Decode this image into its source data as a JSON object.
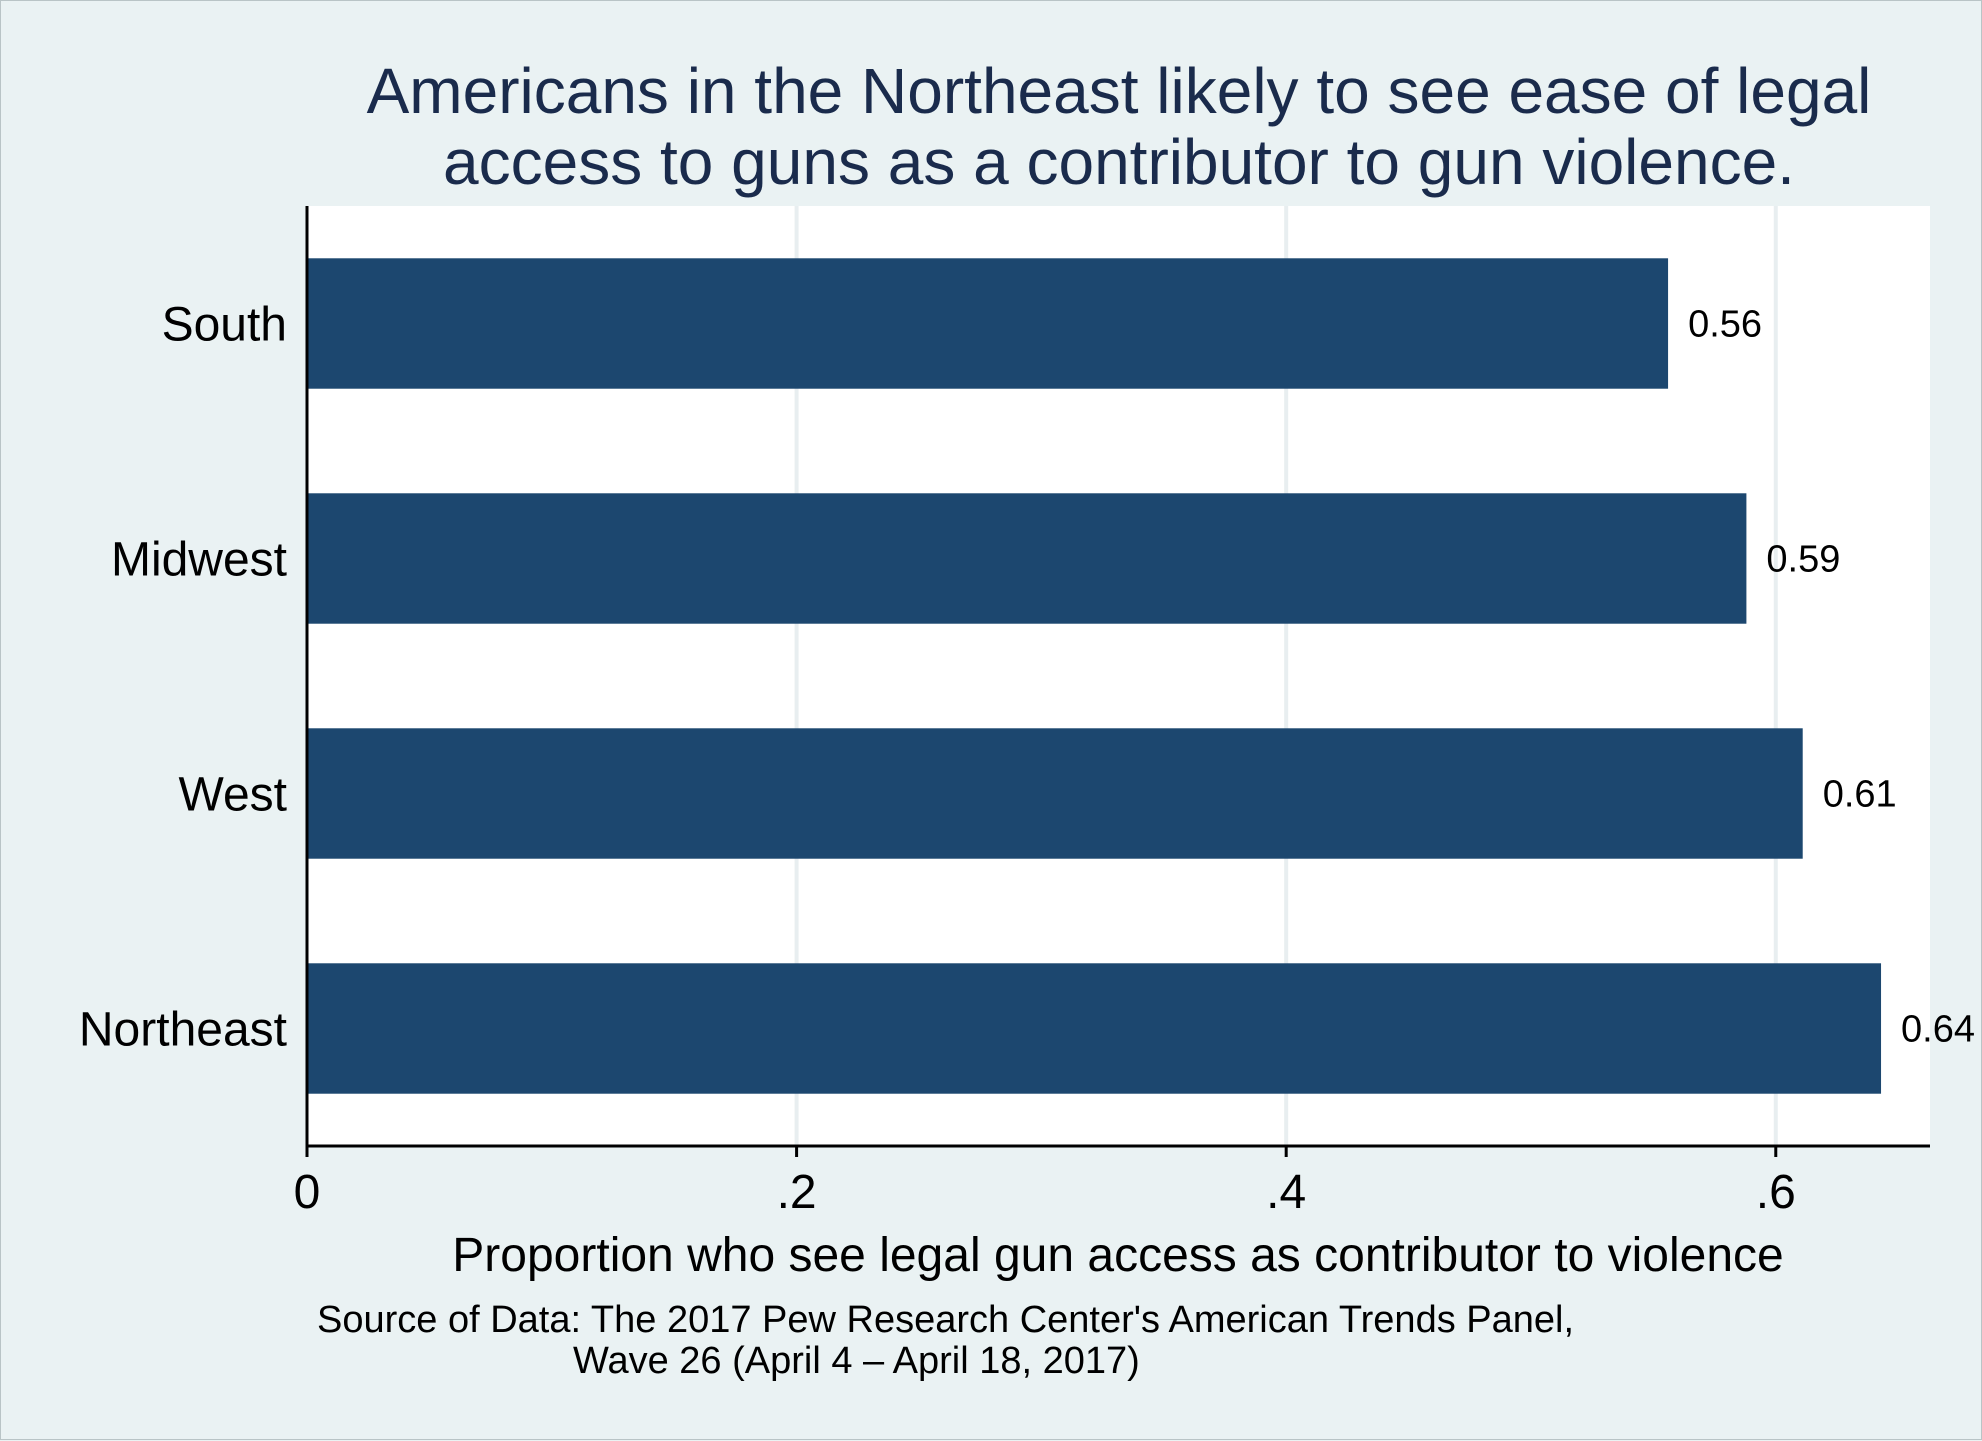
{
  "chart_data": {
    "type": "bar",
    "orientation": "horizontal",
    "title_lines": [
      "Americans in the Northeast likely to see ease of legal",
      "access to guns as a contributor to gun violence."
    ],
    "categories": [
      "South",
      "Midwest",
      "West",
      "Northeast"
    ],
    "values": [
      0.556,
      0.588,
      0.611,
      0.643
    ],
    "value_labels": [
      "0.56",
      "0.59",
      "0.61",
      "0.64"
    ],
    "xlabel": "Proportion who see legal gun access as contributor to violence",
    "xticks": [
      0,
      0.2,
      0.4,
      0.6
    ],
    "xtick_labels": [
      "0",
      ".2",
      ".4",
      ".6"
    ],
    "xlim": [
      0,
      0.663
    ],
    "grid": true,
    "note_lines": [
      "Source of Data: The 2017 Pew Research Center's American Trends Panel,",
      "Wave 26 (April 4 – April 18, 2017)"
    ],
    "colors": {
      "bar": "#1c476f",
      "background": "#eaf2f3",
      "plot_background": "#ffffff",
      "grid": "#e8eef0",
      "title": "#1a2b4c"
    }
  }
}
